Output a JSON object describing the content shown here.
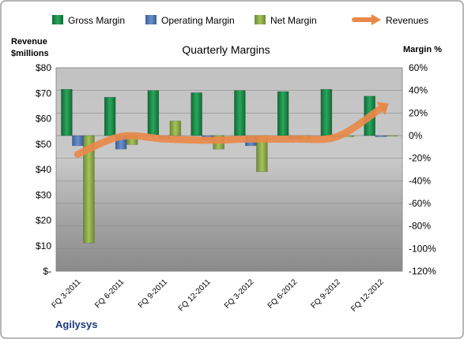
{
  "colors": {
    "gross": "#1e8a4a",
    "operating": "#4a72b0",
    "net": "#8aa84a",
    "revenue": "#e8894a",
    "company": "#1a3a7a"
  },
  "chart_data": {
    "type": "bar",
    "title": "Quarterly Margins",
    "company": "Agilysys",
    "left_axis": {
      "label_line1": "Revenue",
      "label_line2": "$millions",
      "range": [
        0,
        80
      ],
      "ticks": [
        "$-",
        "$10",
        "$20",
        "$30",
        "$40",
        "$50",
        "$60",
        "$70",
        "$80"
      ]
    },
    "right_axis": {
      "label": "Margin %",
      "range": [
        -120,
        60
      ],
      "ticks": [
        "-120%",
        "-100%",
        "-80%",
        "-60%",
        "-40%",
        "-20%",
        "0%",
        "20%",
        "40%",
        "60%"
      ]
    },
    "categories": [
      "FQ 3-2011",
      "FQ 6-2011",
      "FQ 9-2011",
      "FQ 12-2011",
      "FQ 3-2012",
      "FQ 6-2012",
      "FQ 9-2012",
      "FQ 12-2012"
    ],
    "series": [
      {
        "name": "Gross Margin",
        "axis": "right",
        "kind": "bar",
        "values": [
          41,
          34,
          40,
          38,
          40,
          39,
          41,
          35
        ]
      },
      {
        "name": "Operating Margin",
        "axis": "right",
        "kind": "bar",
        "values": [
          -9,
          -12,
          -3,
          -4,
          -9,
          -3,
          -1,
          -1
        ]
      },
      {
        "name": "Net Margin",
        "axis": "right",
        "kind": "bar",
        "values": [
          -95,
          -8,
          13,
          -12,
          -32,
          -3,
          -1,
          0
        ]
      },
      {
        "name": "Revenues",
        "axis": "left",
        "kind": "line",
        "values": [
          46,
          53,
          52,
          51.5,
          52,
          52,
          53,
          64
        ]
      }
    ],
    "legend_position": "top",
    "grid": true
  }
}
